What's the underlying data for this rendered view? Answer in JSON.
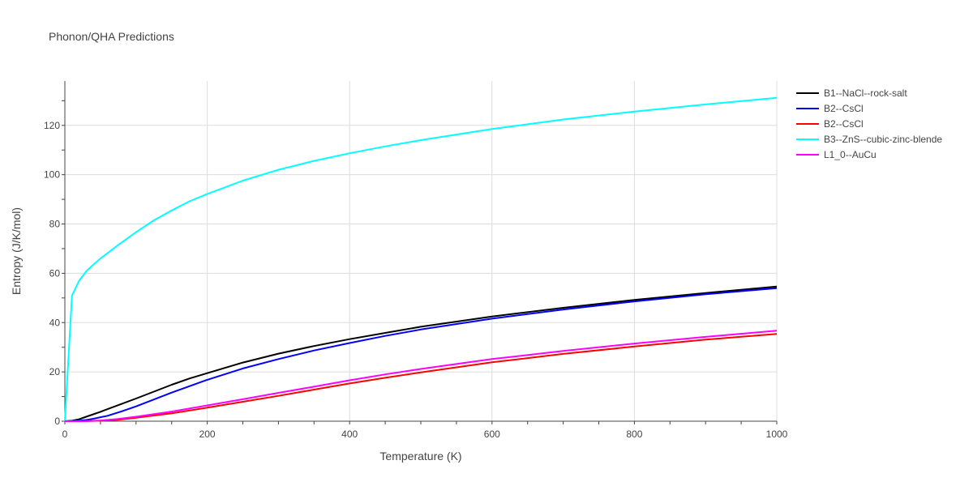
{
  "chart_data": {
    "type": "line",
    "title": "Phonon/QHA Predictions",
    "xlabel": "Temperature (K)",
    "ylabel": "Entropy (J/K/mol)",
    "xlim": [
      0,
      1000
    ],
    "ylim": [
      0,
      138
    ],
    "xticks": [
      0,
      200,
      400,
      600,
      800,
      1000
    ],
    "yticks": [
      0,
      20,
      40,
      60,
      80,
      100,
      120
    ],
    "grid": true,
    "legend_position": "top-right",
    "series": [
      {
        "name": "B1--NaCl--rock-salt",
        "color": "#000000",
        "x": [
          0,
          10,
          20,
          30,
          50,
          75,
          100,
          125,
          150,
          175,
          200,
          250,
          300,
          350,
          400,
          450,
          500,
          600,
          700,
          800,
          900,
          1000
        ],
        "y": [
          0,
          0.2,
          0.8,
          1.8,
          3.8,
          6.5,
          9.2,
          12.0,
          14.8,
          17.3,
          19.5,
          23.8,
          27.4,
          30.5,
          33.3,
          35.8,
          38.3,
          42.5,
          46.0,
          49.2,
          52.0,
          54.6
        ]
      },
      {
        "name": "B2--CsCl",
        "color": "#0000ff",
        "x": [
          0,
          10,
          20,
          30,
          40,
          60,
          80,
          100,
          125,
          150,
          175,
          200,
          250,
          300,
          350,
          400,
          450,
          500,
          600,
          700,
          800,
          900,
          1000
        ],
        "y": [
          0,
          0.05,
          0.2,
          0.5,
          1.0,
          2.2,
          4.0,
          6.0,
          8.8,
          11.6,
          14.2,
          16.8,
          21.4,
          25.2,
          28.7,
          31.7,
          34.6,
          37.2,
          41.6,
          45.3,
          48.6,
          51.5,
          54.0
        ]
      },
      {
        "name": "B2--CsCl",
        "color": "#ff0000",
        "x": [
          0,
          25,
          50,
          75,
          100,
          150,
          200,
          250,
          300,
          350,
          400,
          450,
          500,
          600,
          700,
          800,
          900,
          1000
        ],
        "y": [
          0,
          0.0,
          0.2,
          0.6,
          1.4,
          3.2,
          5.5,
          7.9,
          10.3,
          12.8,
          15.3,
          17.6,
          19.8,
          23.9,
          27.3,
          30.3,
          33.1,
          35.4
        ]
      },
      {
        "name": "B3--ZnS--cubic-zinc-blende",
        "color": "#00ffff",
        "x": [
          0,
          10,
          20,
          30,
          40,
          50,
          75,
          100,
          125,
          150,
          175,
          200,
          250,
          300,
          350,
          400,
          450,
          500,
          600,
          700,
          800,
          900,
          1000
        ],
        "y": [
          0,
          51.0,
          57.0,
          60.8,
          63.5,
          66.0,
          71.5,
          76.7,
          81.5,
          85.5,
          89.2,
          92.2,
          97.6,
          102.0,
          105.6,
          108.7,
          111.5,
          114.0,
          118.5,
          122.4,
          125.6,
          128.5,
          131.2
        ]
      },
      {
        "name": "L1_0--AuCu",
        "color": "#ff00ff",
        "x": [
          0,
          25,
          50,
          75,
          100,
          150,
          200,
          250,
          300,
          350,
          400,
          450,
          500,
          600,
          700,
          800,
          900,
          1000
        ],
        "y": [
          0,
          0.0,
          0.3,
          0.9,
          1.8,
          3.9,
          6.4,
          8.9,
          11.5,
          14.0,
          16.6,
          19.0,
          21.2,
          25.2,
          28.5,
          31.5,
          34.2,
          36.7
        ]
      }
    ]
  }
}
